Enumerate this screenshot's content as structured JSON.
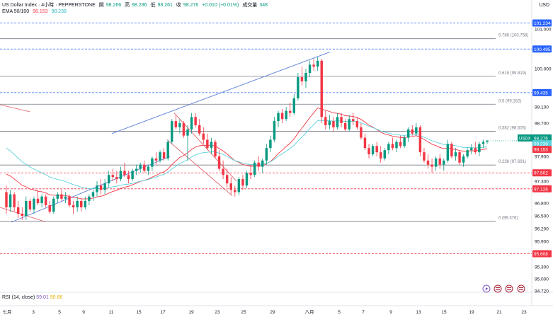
{
  "header": {
    "symbol": "US Dollar Index · 4小時 · PEPPERSTONE",
    "open_label": "開",
    "open": "98.266",
    "high_label": "高",
    "high": "98.286",
    "low_label": "低",
    "low": "98.261",
    "close_label": "收",
    "close": "98.276",
    "change": "+0.010 (+0.01%)",
    "volume_label": "成交量",
    "volume": "348",
    "ema_label": "EMA 50/100",
    "ema50": "98.153",
    "ema100": "98.238"
  },
  "currency": "USD",
  "rsi": {
    "label": "RSI (14, close)",
    "value1": "59.01",
    "value2": "50.66"
  },
  "colors": {
    "up": "#089981",
    "down": "#f23645",
    "ema50": "#f23645",
    "ema100": "#5ad2dc",
    "blue_tag": "#2962ff",
    "red_tag": "#f23645",
    "channel": "#5b7fd6"
  },
  "chart_data": {
    "type": "candlestick",
    "y_range": [
      94.72,
      101.55
    ],
    "y_ticks": [
      "101.000",
      "100.000",
      "99.100",
      "98.700",
      "97.900",
      "97.300",
      "96.800",
      "96.500",
      "96.200",
      "95.900",
      "95.300",
      "95.000",
      "94.720"
    ],
    "x_ticks": [
      "七月",
      "3",
      "5",
      "9",
      "11",
      "15",
      "17",
      "19",
      "23",
      "25",
      "29",
      "八月",
      "5",
      "7",
      "9",
      "13",
      "15",
      "19",
      "21",
      "23"
    ],
    "fib_levels": [
      {
        "label": "0.786 (100.756)",
        "value": 100.756
      },
      {
        "label": "0.618 (99.819)",
        "value": 99.819
      },
      {
        "label": "0.5 (99.162)",
        "value": 99.162
      },
      {
        "label": "0.382 (98.505)",
        "value": 98.505
      },
      {
        "label": "0.236 (97.691)",
        "value": 97.691
      },
      {
        "label": "0 (96.376)",
        "value": 96.376
      }
    ],
    "blue_levels": [
      "101.234",
      "100.495",
      "99.435"
    ],
    "red_levels": [
      "97.502",
      "97.126",
      "95.608"
    ],
    "price_tags": [
      {
        "label": "USDX",
        "value": "98.276",
        "color": "#089981"
      },
      {
        "label": "",
        "value": "98.238",
        "color": "#5ad2dc"
      },
      {
        "label": "",
        "value": "98.153",
        "color": "#f23645"
      }
    ],
    "candles_ohlc": [
      [
        97.05,
        97.2,
        96.55,
        96.7
      ],
      [
        96.7,
        97.1,
        96.6,
        97.0
      ],
      [
        97.0,
        97.05,
        96.6,
        96.7
      ],
      [
        96.7,
        96.85,
        96.45,
        96.55
      ],
      [
        96.55,
        96.7,
        96.4,
        96.5
      ],
      [
        96.5,
        96.95,
        96.4,
        96.85
      ],
      [
        96.85,
        96.9,
        96.6,
        96.65
      ],
      [
        96.65,
        96.95,
        96.55,
        96.9
      ],
      [
        96.9,
        97.1,
        96.75,
        96.8
      ],
      [
        96.8,
        97.0,
        96.7,
        96.95
      ],
      [
        96.95,
        97.0,
        96.7,
        96.75
      ],
      [
        96.75,
        96.85,
        96.55,
        96.6
      ],
      [
        96.6,
        96.95,
        96.55,
        96.9
      ],
      [
        96.9,
        97.05,
        96.8,
        97.0
      ],
      [
        97.0,
        97.1,
        96.85,
        96.9
      ],
      [
        96.9,
        97.05,
        96.8,
        96.95
      ],
      [
        96.95,
        97.0,
        96.7,
        96.75
      ],
      [
        96.75,
        96.85,
        96.55,
        96.7
      ],
      [
        96.7,
        96.95,
        96.6,
        96.85
      ],
      [
        96.85,
        96.9,
        96.6,
        96.7
      ],
      [
        96.7,
        96.95,
        96.65,
        96.85
      ],
      [
        96.85,
        97.0,
        96.75,
        96.95
      ],
      [
        96.95,
        97.1,
        96.85,
        97.05
      ],
      [
        97.05,
        97.3,
        96.95,
        97.2
      ],
      [
        97.2,
        97.35,
        97.0,
        97.1
      ],
      [
        97.1,
        97.35,
        97.0,
        97.25
      ],
      [
        97.25,
        97.55,
        97.15,
        97.45
      ],
      [
        97.45,
        97.6,
        97.3,
        97.4
      ],
      [
        97.4,
        97.55,
        97.25,
        97.35
      ],
      [
        97.35,
        97.65,
        97.3,
        97.55
      ],
      [
        97.55,
        97.75,
        97.4,
        97.45
      ],
      [
        97.45,
        97.55,
        97.25,
        97.35
      ],
      [
        97.35,
        97.6,
        97.3,
        97.55
      ],
      [
        97.55,
        97.7,
        97.45,
        97.6
      ],
      [
        97.6,
        97.75,
        97.5,
        97.7
      ],
      [
        97.7,
        97.8,
        97.5,
        97.55
      ],
      [
        97.55,
        97.7,
        97.45,
        97.65
      ],
      [
        97.65,
        97.9,
        97.55,
        97.85
      ],
      [
        97.85,
        98.0,
        97.7,
        97.8
      ],
      [
        97.8,
        98.05,
        97.75,
        98.0
      ],
      [
        98.0,
        98.1,
        97.8,
        97.85
      ],
      [
        97.85,
        98.3,
        97.8,
        98.25
      ],
      [
        98.25,
        98.8,
        98.2,
        98.75
      ],
      [
        98.75,
        98.9,
        98.55,
        98.6
      ],
      [
        98.6,
        98.8,
        98.45,
        98.7
      ],
      [
        98.7,
        98.75,
        98.35,
        98.4
      ],
      [
        98.4,
        98.65,
        97.8,
        98.55
      ],
      [
        98.55,
        98.95,
        98.45,
        98.85
      ],
      [
        98.85,
        98.95,
        98.6,
        98.65
      ],
      [
        98.65,
        98.8,
        98.4,
        98.45
      ],
      [
        98.45,
        98.6,
        98.2,
        98.3
      ],
      [
        98.3,
        98.45,
        98.05,
        98.1
      ],
      [
        98.1,
        98.35,
        97.95,
        98.25
      ],
      [
        98.25,
        98.3,
        97.85,
        97.9
      ],
      [
        97.9,
        98.05,
        97.55,
        97.6
      ],
      [
        97.6,
        97.8,
        97.35,
        97.45
      ],
      [
        97.45,
        97.6,
        97.15,
        97.25
      ],
      [
        97.25,
        97.4,
        97.0,
        97.1
      ],
      [
        97.1,
        97.2,
        96.95,
        97.05
      ],
      [
        97.05,
        97.4,
        96.98,
        97.35
      ],
      [
        97.35,
        97.45,
        97.1,
        97.2
      ],
      [
        97.2,
        97.55,
        97.15,
        97.5
      ],
      [
        97.5,
        97.7,
        97.35,
        97.45
      ],
      [
        97.45,
        97.8,
        97.4,
        97.75
      ],
      [
        97.75,
        97.9,
        97.55,
        97.65
      ],
      [
        97.65,
        97.85,
        97.5,
        97.8
      ],
      [
        97.8,
        98.2,
        97.7,
        98.1
      ],
      [
        98.1,
        98.4,
        98.0,
        98.3
      ],
      [
        98.3,
        98.85,
        98.25,
        98.75
      ],
      [
        98.75,
        99.0,
        98.6,
        98.95
      ],
      [
        98.95,
        99.05,
        98.7,
        98.8
      ],
      [
        98.8,
        99.1,
        98.75,
        99.0
      ],
      [
        99.0,
        99.2,
        98.85,
        98.95
      ],
      [
        98.95,
        99.4,
        98.9,
        99.3
      ],
      [
        99.3,
        99.9,
        99.25,
        99.8
      ],
      [
        99.8,
        100.05,
        99.6,
        99.7
      ],
      [
        99.7,
        100.0,
        99.55,
        99.9
      ],
      [
        99.9,
        100.2,
        99.8,
        100.1
      ],
      [
        100.1,
        100.25,
        99.95,
        100.05
      ],
      [
        100.05,
        100.3,
        99.95,
        100.2
      ],
      [
        100.2,
        100.25,
        98.7,
        98.85
      ],
      [
        98.85,
        99.0,
        98.55,
        98.65
      ],
      [
        98.65,
        98.9,
        98.55,
        98.75
      ],
      [
        98.75,
        98.85,
        98.5,
        98.6
      ],
      [
        98.6,
        98.95,
        98.55,
        98.85
      ],
      [
        98.85,
        98.95,
        98.6,
        98.7
      ],
      [
        98.7,
        98.8,
        98.5,
        98.55
      ],
      [
        98.55,
        98.9,
        98.5,
        98.8
      ],
      [
        98.8,
        98.95,
        98.65,
        98.75
      ],
      [
        98.75,
        98.85,
        98.55,
        98.6
      ],
      [
        98.6,
        98.7,
        98.3,
        98.35
      ],
      [
        98.35,
        98.45,
        98.05,
        98.1
      ],
      [
        98.1,
        98.2,
        97.85,
        97.95
      ],
      [
        97.95,
        98.2,
        97.9,
        98.15
      ],
      [
        98.15,
        98.25,
        97.9,
        98.0
      ],
      [
        98.0,
        98.15,
        97.75,
        97.85
      ],
      [
        97.85,
        98.1,
        97.8,
        98.05
      ],
      [
        98.05,
        98.25,
        97.95,
        98.2
      ],
      [
        98.2,
        98.35,
        98.05,
        98.1
      ],
      [
        98.1,
        98.3,
        98.0,
        98.25
      ],
      [
        98.25,
        98.4,
        98.1,
        98.15
      ],
      [
        98.15,
        98.4,
        98.1,
        98.35
      ],
      [
        98.35,
        98.6,
        98.25,
        98.55
      ],
      [
        98.55,
        98.65,
        98.4,
        98.45
      ],
      [
        98.45,
        98.7,
        98.4,
        98.6
      ],
      [
        98.6,
        98.65,
        97.9,
        98.0
      ],
      [
        98.0,
        98.1,
        97.75,
        97.8
      ],
      [
        97.8,
        97.95,
        97.6,
        97.7
      ],
      [
        97.7,
        97.85,
        97.5,
        97.65
      ],
      [
        97.65,
        97.9,
        97.55,
        97.85
      ],
      [
        97.85,
        97.95,
        97.6,
        97.7
      ],
      [
        97.7,
        97.85,
        97.55,
        97.8
      ],
      [
        97.8,
        98.3,
        97.75,
        98.2
      ],
      [
        98.2,
        98.25,
        97.85,
        97.9
      ],
      [
        97.9,
        98.1,
        97.8,
        98.0
      ],
      [
        98.0,
        98.05,
        97.7,
        97.75
      ],
      [
        97.75,
        97.95,
        97.65,
        97.9
      ],
      [
        97.9,
        98.1,
        97.85,
        98.05
      ],
      [
        98.05,
        98.2,
        97.95,
        98.1
      ],
      [
        98.1,
        98.25,
        97.95,
        98.0
      ],
      [
        98.0,
        98.25,
        97.9,
        98.2
      ],
      [
        98.2,
        98.3,
        98.1,
        98.25
      ],
      [
        98.25,
        98.29,
        98.2,
        98.28
      ]
    ]
  }
}
